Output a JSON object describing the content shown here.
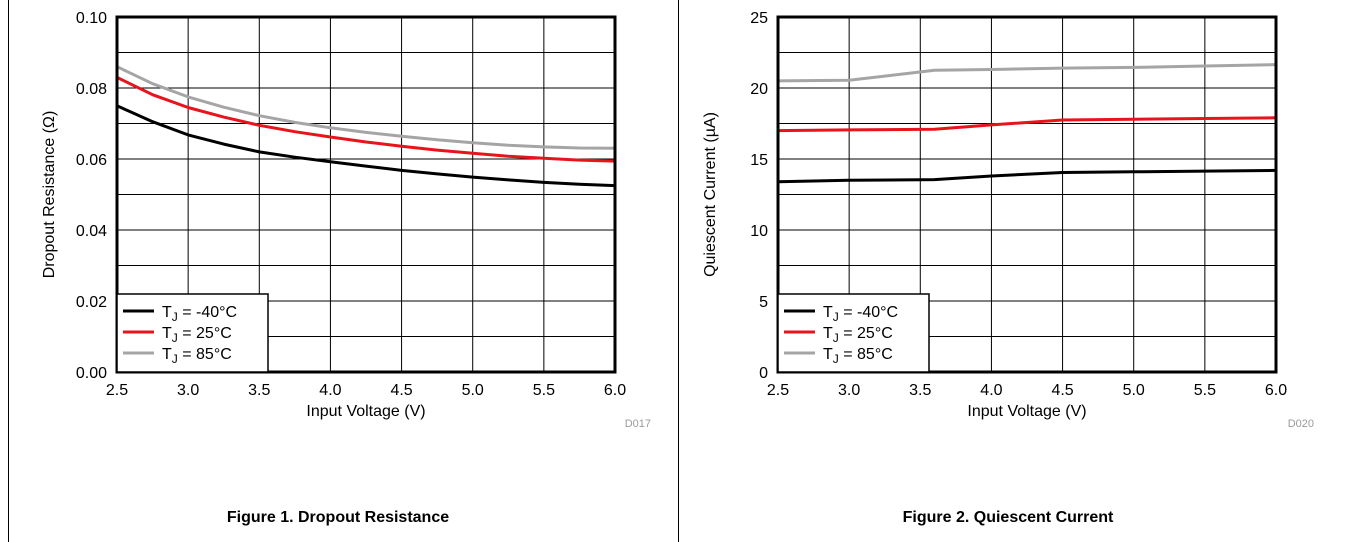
{
  "figures": [
    {
      "caption": "Figure 1. Dropout Resistance",
      "code": "D017"
    },
    {
      "caption": "Figure 2. Quiescent Current",
      "code": "D020"
    }
  ],
  "chart_data": [
    {
      "type": "line",
      "title": "",
      "xlabel": "Input Voltage (V)",
      "ylabel": "Dropout Resistance (Ω)",
      "xlim": [
        2.5,
        6.0
      ],
      "ylim": [
        0.0,
        0.1
      ],
      "xticks": [
        "2.5",
        "3.0",
        "3.5",
        "4.0",
        "4.5",
        "5.0",
        "5.5",
        "6.0"
      ],
      "yticks": [
        "0.00",
        "0.02",
        "0.04",
        "0.06",
        "0.08",
        "0.10"
      ],
      "grid": true,
      "legend_position": "bottom-left",
      "x": [
        2.5,
        2.75,
        3.0,
        3.25,
        3.5,
        3.75,
        4.0,
        4.25,
        4.5,
        4.75,
        5.0,
        5.25,
        5.5,
        5.75,
        6.0
      ],
      "series": [
        {
          "name": "T_J = -40°C",
          "color": "#000000",
          "values": [
            0.075,
            0.0705,
            0.0668,
            0.0642,
            0.062,
            0.0605,
            0.0592,
            0.058,
            0.0568,
            0.0558,
            0.0549,
            0.0541,
            0.0534,
            0.0529,
            0.0525
          ]
        },
        {
          "name": "T_J = 25°C",
          "color": "#e8141b",
          "values": [
            0.083,
            0.0781,
            0.0745,
            0.0718,
            0.0695,
            0.0677,
            0.0662,
            0.0648,
            0.0636,
            0.0625,
            0.0616,
            0.0608,
            0.0602,
            0.0597,
            0.0594
          ]
        },
        {
          "name": "T_J = 85°C",
          "color": "#a5a5a5",
          "values": [
            0.086,
            0.0812,
            0.0775,
            0.0746,
            0.0722,
            0.0703,
            0.0688,
            0.0675,
            0.0664,
            0.0654,
            0.0646,
            0.0639,
            0.0634,
            0.0631,
            0.063
          ]
        }
      ]
    },
    {
      "type": "line",
      "title": "",
      "xlabel": "Input Voltage (V)",
      "ylabel": "Quiescent Current (µA)",
      "xlim": [
        2.5,
        6.0
      ],
      "ylim": [
        0,
        25
      ],
      "xticks": [
        "2.5",
        "3.0",
        "3.5",
        "4.0",
        "4.5",
        "5.0",
        "5.5",
        "6.0"
      ],
      "yticks": [
        "0",
        "5",
        "10",
        "15",
        "20",
        "25"
      ],
      "grid": true,
      "legend_position": "bottom-left",
      "x": [
        2.5,
        3.0,
        3.6,
        4.0,
        4.5,
        5.0,
        5.5,
        6.0
      ],
      "series": [
        {
          "name": "T_J = -40°C",
          "color": "#000000",
          "values": [
            13.4,
            13.5,
            13.55,
            13.8,
            14.05,
            14.1,
            14.15,
            14.2
          ]
        },
        {
          "name": "T_J = 25°C",
          "color": "#e8141b",
          "values": [
            17.0,
            17.05,
            17.1,
            17.4,
            17.75,
            17.8,
            17.85,
            17.9
          ]
        },
        {
          "name": "T_J = 85°C",
          "color": "#a5a5a5",
          "values": [
            20.5,
            20.55,
            21.25,
            21.3,
            21.4,
            21.45,
            21.55,
            21.65
          ]
        }
      ]
    }
  ]
}
